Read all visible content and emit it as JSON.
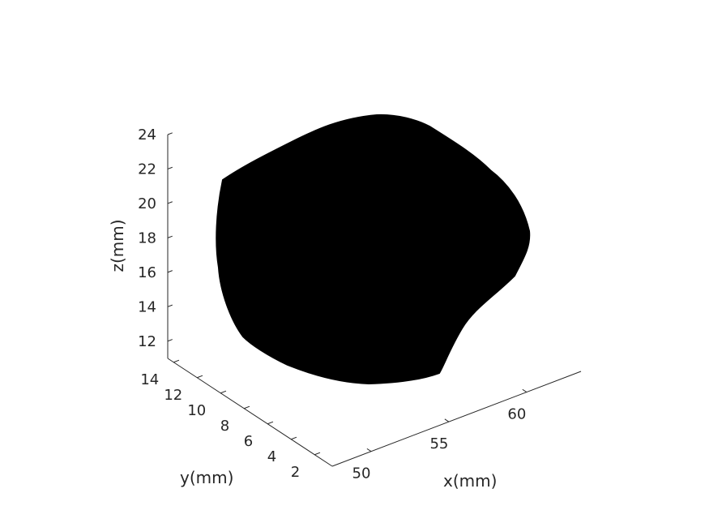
{
  "chart_data": {
    "type": "surface",
    "title": "",
    "xlabel": "x(mm)",
    "ylabel": "y(mm)",
    "zlabel": "z(mm)",
    "xticks": [
      50,
      55,
      60
    ],
    "yticks": [
      2,
      4,
      6,
      8,
      10,
      12,
      14
    ],
    "zticks": [
      12,
      14,
      16,
      18,
      20,
      22,
      24
    ],
    "xlim": [
      47.5,
      63.5
    ],
    "ylim": [
      0.5,
      14.5
    ],
    "zlim": [
      11,
      24
    ],
    "grid": false,
    "legend": "none",
    "surface_color": "#000000",
    "axis_color": "#262626"
  }
}
